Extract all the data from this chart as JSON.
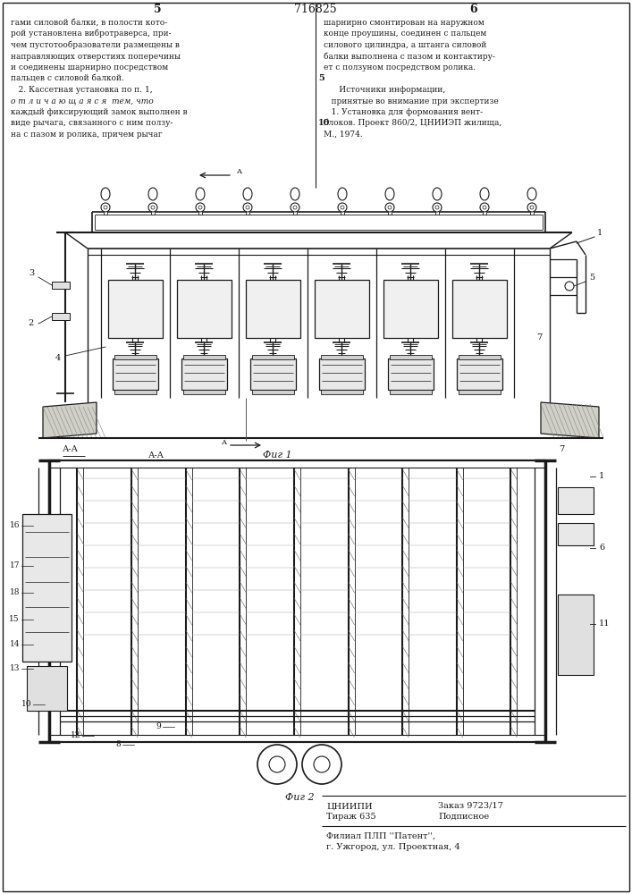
{
  "page_width": 7.07,
  "page_height": 10.0,
  "bg_color": "#ffffff",
  "text_color": "#1a1a1a",
  "line_color": "#1a1a1a",
  "patent_number": "716825",
  "page_left": "5",
  "page_right": "6",
  "top_text_left": [
    "гами силовой балки, в полости кото-",
    "рой установлена вибротраверса, при-",
    "чем пустотообразователи размещены в",
    "направляющих отверстиях поперечины",
    "и соединены шарнирно посредством",
    "пальцев с силовой балкой.",
    "   2. Кассетная установка по п. 1,",
    "о т л и ч а ю щ а я с я  тем, что",
    "каждый фиксирующий замок выполнен в",
    "виде рычага, связанного с ним ползу-",
    "на с пазом и ролика, причем рычаг"
  ],
  "top_text_right": [
    "шарнирно смонтирован на наружном",
    "конце проушины, соединен с пальцем",
    "силового цилиндра, а штанга силовой",
    "балки выполнена с пазом и контактиру-",
    "ет с ползуном посредством ролика.",
    "",
    "      Источники информации,",
    "   принятые во внимание при экспертизе",
    "   1. Установка для формования вент-",
    "блоков. Проект 860/2, ЦНИИЭП жилища,",
    "М., 1974."
  ],
  "fig1_label": "Фиг 1",
  "fig2_label": "Фиг 2",
  "bottom_info": [
    [
      "ЦНИИПИ",
      "Заказ 9723/17"
    ],
    [
      "Тираж 635",
      "Подписное"
    ]
  ],
  "bottom_filial": [
    "Филиал ПЛП ''Патент'',",
    "г. Ужгород, ул. Проектная, 4"
  ]
}
